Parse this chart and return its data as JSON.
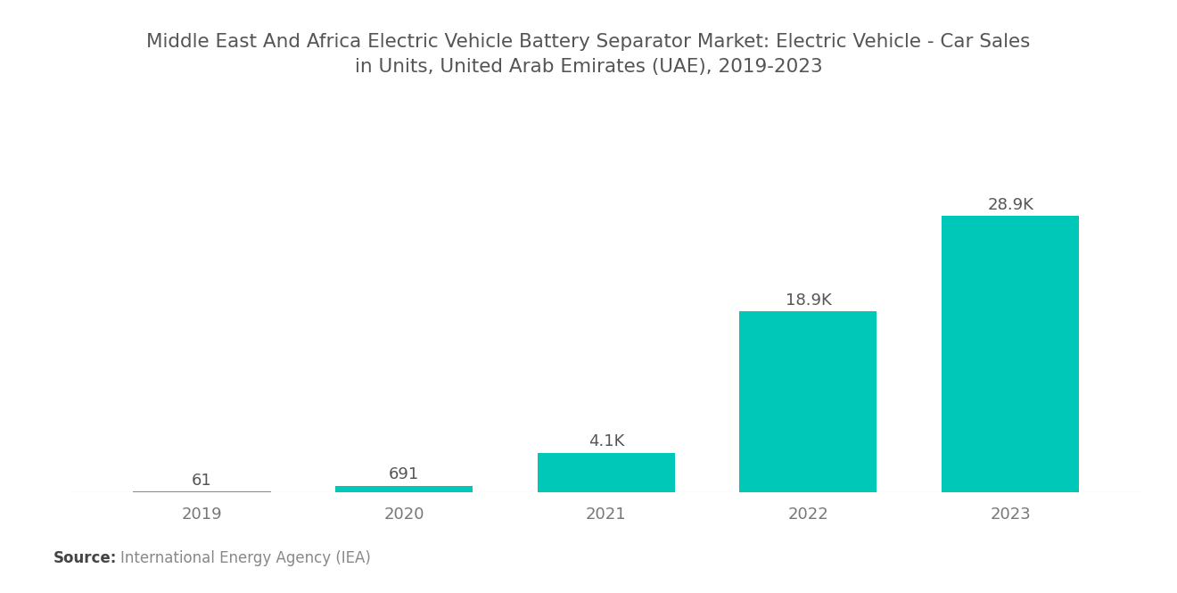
{
  "title": "Middle East And Africa Electric Vehicle Battery Separator Market: Electric Vehicle - Car Sales\nin Units, United Arab Emirates (UAE), 2019-2023",
  "categories": [
    "2019",
    "2020",
    "2021",
    "2022",
    "2023"
  ],
  "values": [
    61,
    691,
    4100,
    18900,
    28900
  ],
  "labels": [
    "61",
    "691",
    "4.1K",
    "18.9K",
    "28.9K"
  ],
  "bar_color": "#00C8B8",
  "background_color": "#ffffff",
  "source_bold": "Source:",
  "source_text": "International Energy Agency (IEA)",
  "title_fontsize": 15.5,
  "label_fontsize": 13,
  "tick_fontsize": 13,
  "source_fontsize": 12,
  "title_color": "#555555",
  "tick_color": "#777777",
  "label_color": "#555555",
  "source_bold_color": "#444444",
  "source_color": "#888888",
  "ylim_max": 36000,
  "bar_width": 0.68
}
